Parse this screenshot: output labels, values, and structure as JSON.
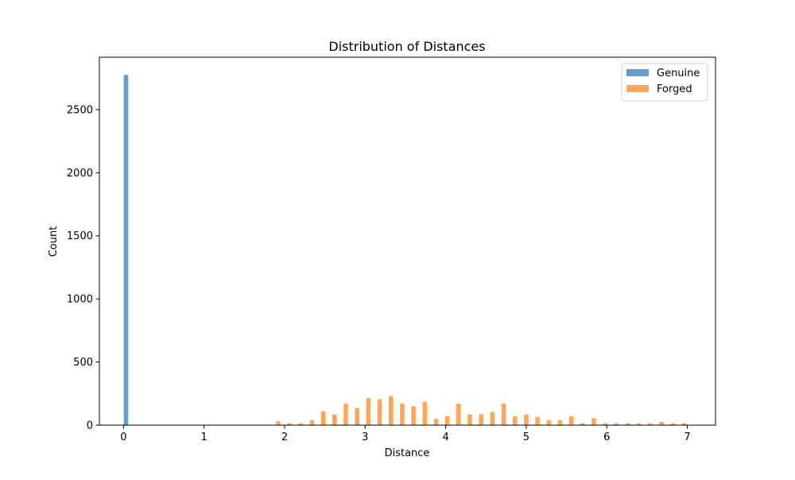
{
  "chart_data": {
    "type": "bar",
    "title": "Distribution of Distances",
    "xlabel": "Distance",
    "ylabel": "Count",
    "xlim": [
      -0.3,
      7.35
    ],
    "ylim": [
      0,
      2915
    ],
    "x_ticks": [
      0,
      1,
      2,
      3,
      4,
      5,
      6,
      7
    ],
    "y_ticks": [
      0,
      500,
      1000,
      1500,
      2000,
      2500
    ],
    "grid": false,
    "legend_position": "upper right",
    "bar_width": 0.055,
    "series": [
      {
        "name": "Genuine",
        "color": "#1f77b4",
        "opacity": 0.7,
        "points": [
          {
            "x": 0.03,
            "y": 2775
          }
        ]
      },
      {
        "name": "Forged",
        "color": "#ff7f0e",
        "opacity": 0.7,
        "points": [
          {
            "x": 1.92,
            "y": 30
          },
          {
            "x": 2.06,
            "y": 15
          },
          {
            "x": 2.2,
            "y": 15
          },
          {
            "x": 2.34,
            "y": 40
          },
          {
            "x": 2.48,
            "y": 110
          },
          {
            "x": 2.62,
            "y": 85
          },
          {
            "x": 2.76,
            "y": 170
          },
          {
            "x": 2.9,
            "y": 135
          },
          {
            "x": 3.04,
            "y": 215
          },
          {
            "x": 3.18,
            "y": 205
          },
          {
            "x": 3.32,
            "y": 230
          },
          {
            "x": 3.46,
            "y": 170
          },
          {
            "x": 3.6,
            "y": 150
          },
          {
            "x": 3.74,
            "y": 185
          },
          {
            "x": 3.88,
            "y": 50
          },
          {
            "x": 4.02,
            "y": 70
          },
          {
            "x": 4.16,
            "y": 170
          },
          {
            "x": 4.3,
            "y": 85
          },
          {
            "x": 4.44,
            "y": 85
          },
          {
            "x": 4.58,
            "y": 105
          },
          {
            "x": 4.72,
            "y": 170
          },
          {
            "x": 4.86,
            "y": 70
          },
          {
            "x": 5.0,
            "y": 85
          },
          {
            "x": 5.14,
            "y": 65
          },
          {
            "x": 5.28,
            "y": 40
          },
          {
            "x": 5.42,
            "y": 40
          },
          {
            "x": 5.56,
            "y": 70
          },
          {
            "x": 5.7,
            "y": 15
          },
          {
            "x": 5.84,
            "y": 55
          },
          {
            "x": 5.98,
            "y": 15
          },
          {
            "x": 6.12,
            "y": 15
          },
          {
            "x": 6.26,
            "y": 15
          },
          {
            "x": 6.4,
            "y": 15
          },
          {
            "x": 6.54,
            "y": 15
          },
          {
            "x": 6.68,
            "y": 25
          },
          {
            "x": 6.82,
            "y": 15
          },
          {
            "x": 6.96,
            "y": 15
          }
        ]
      }
    ]
  }
}
